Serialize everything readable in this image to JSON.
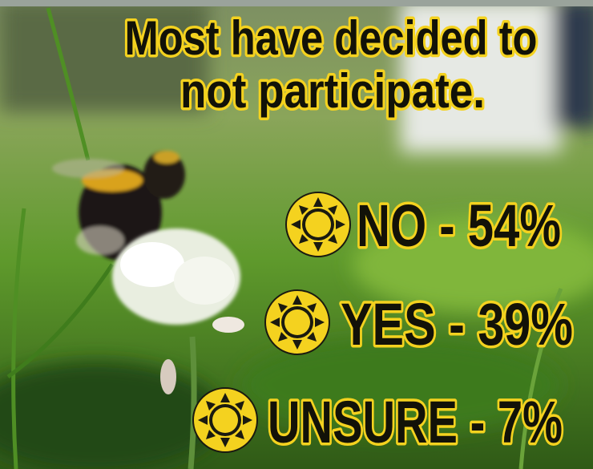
{
  "header": {
    "title_lines": [
      "Most have decided to",
      "not participate."
    ]
  },
  "results": [
    "NO - 54%",
    "YES - 39%",
    "UNSURE - 7%"
  ]
}
